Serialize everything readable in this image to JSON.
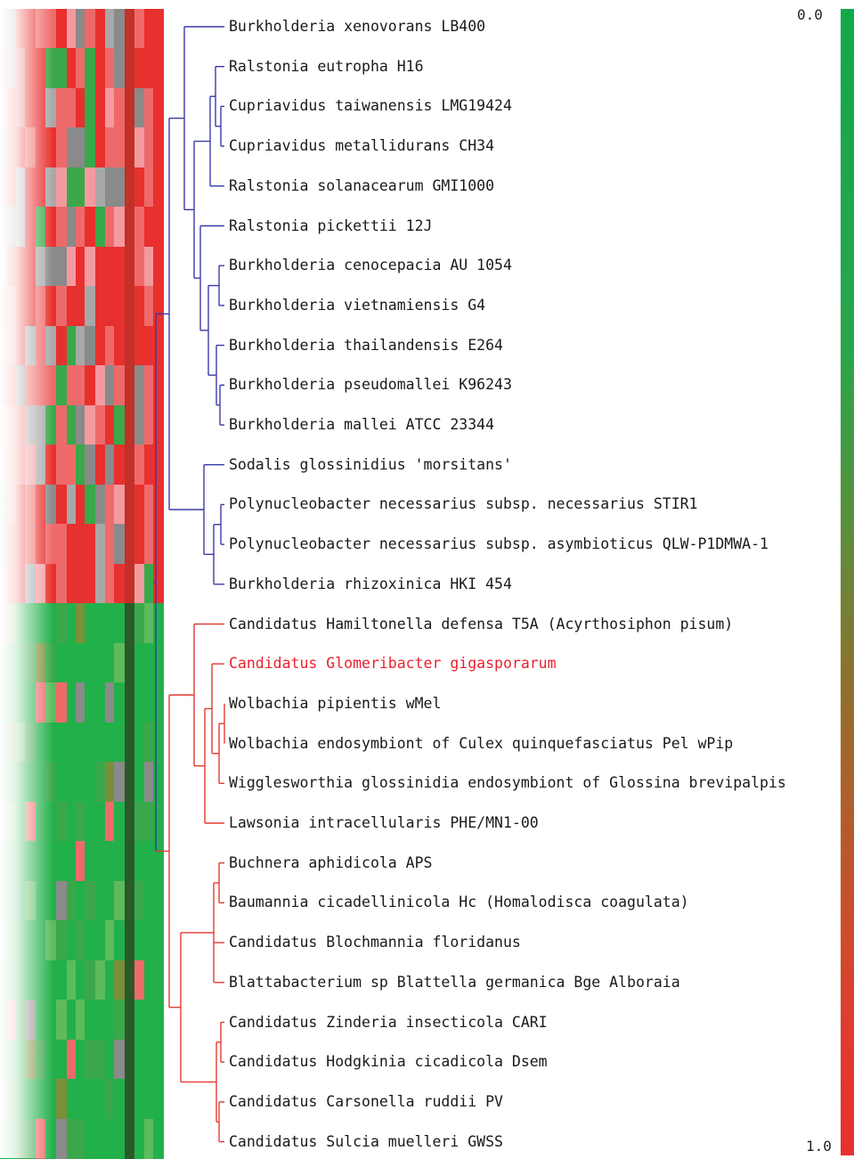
{
  "colors": {
    "group_blue": "#3a3aa8",
    "group_red": "#e33a33",
    "highlight": "#e8222e"
  },
  "colorbar": {
    "min_label": "0.0",
    "max_label": "1.0",
    "low_color": "#12a84a",
    "high_color": "#e8302e"
  },
  "taxa": [
    {
      "label": "Burkholderia xenovorans LB400",
      "group": "blue"
    },
    {
      "label": "Ralstonia eutropha H16",
      "group": "blue"
    },
    {
      "label": "Cupriavidus taiwanensis LMG19424",
      "group": "blue"
    },
    {
      "label": "Cupriavidus metallidurans CH34",
      "group": "blue"
    },
    {
      "label": "Ralstonia solanacearum GMI1000",
      "group": "blue"
    },
    {
      "label": "Ralstonia pickettii 12J",
      "group": "blue"
    },
    {
      "label": "Burkholderia cenocepacia AU 1054",
      "group": "blue"
    },
    {
      "label": "Burkholderia vietnamiensis G4",
      "group": "blue"
    },
    {
      "label": "Burkholderia thailandensis E264",
      "group": "blue"
    },
    {
      "label": "Burkholderia pseudomallei K96243",
      "group": "blue"
    },
    {
      "label": "Burkholderia mallei ATCC 23344",
      "group": "blue"
    },
    {
      "label": "Sodalis glossinidius 'morsitans'",
      "group": "blue"
    },
    {
      "label": "Polynucleobacter necessarius subsp. necessarius STIR1",
      "group": "blue"
    },
    {
      "label": "Polynucleobacter necessarius subsp. asymbioticus QLW-P1DMWA-1",
      "group": "blue"
    },
    {
      "label": "Burkholderia rhizoxinica HKI 454",
      "group": "blue"
    },
    {
      "label": "Candidatus Hamiltonella defensa T5A (Acyrthosiphon pisum)",
      "group": "red"
    },
    {
      "label": "Candidatus Glomeribacter gigasporarum",
      "group": "red",
      "highlight": true
    },
    {
      "label": "Wolbachia pipientis wMel",
      "group": "red"
    },
    {
      "label": "Wolbachia endosymbiont of Culex quinquefasciatus Pel wPip",
      "group": "red"
    },
    {
      "label": "Wigglesworthia glossinidia endosymbiont of Glossina brevipalpis",
      "group": "red"
    },
    {
      "label": "Lawsonia intracellularis PHE/MN1-00",
      "group": "red"
    },
    {
      "label": "Buchnera aphidicola APS",
      "group": "red"
    },
    {
      "label": "Baumannia cicadellinicola Hc (Homalodisca coagulata)",
      "group": "red"
    },
    {
      "label": "Candidatus Blochmannia floridanus",
      "group": "red"
    },
    {
      "label": "Blattabacterium sp Blattella germanica Bge Alboraia",
      "group": "red"
    },
    {
      "label": "Candidatus Zinderia insecticola CARI",
      "group": "red"
    },
    {
      "label": "Candidatus Hodgkinia cicadicola Dsem",
      "group": "red"
    },
    {
      "label": "Candidatus Carsonella ruddii PV",
      "group": "red"
    },
    {
      "label": "Candidatus Sulcia muelleri GWSS",
      "group": "red"
    }
  ]
}
